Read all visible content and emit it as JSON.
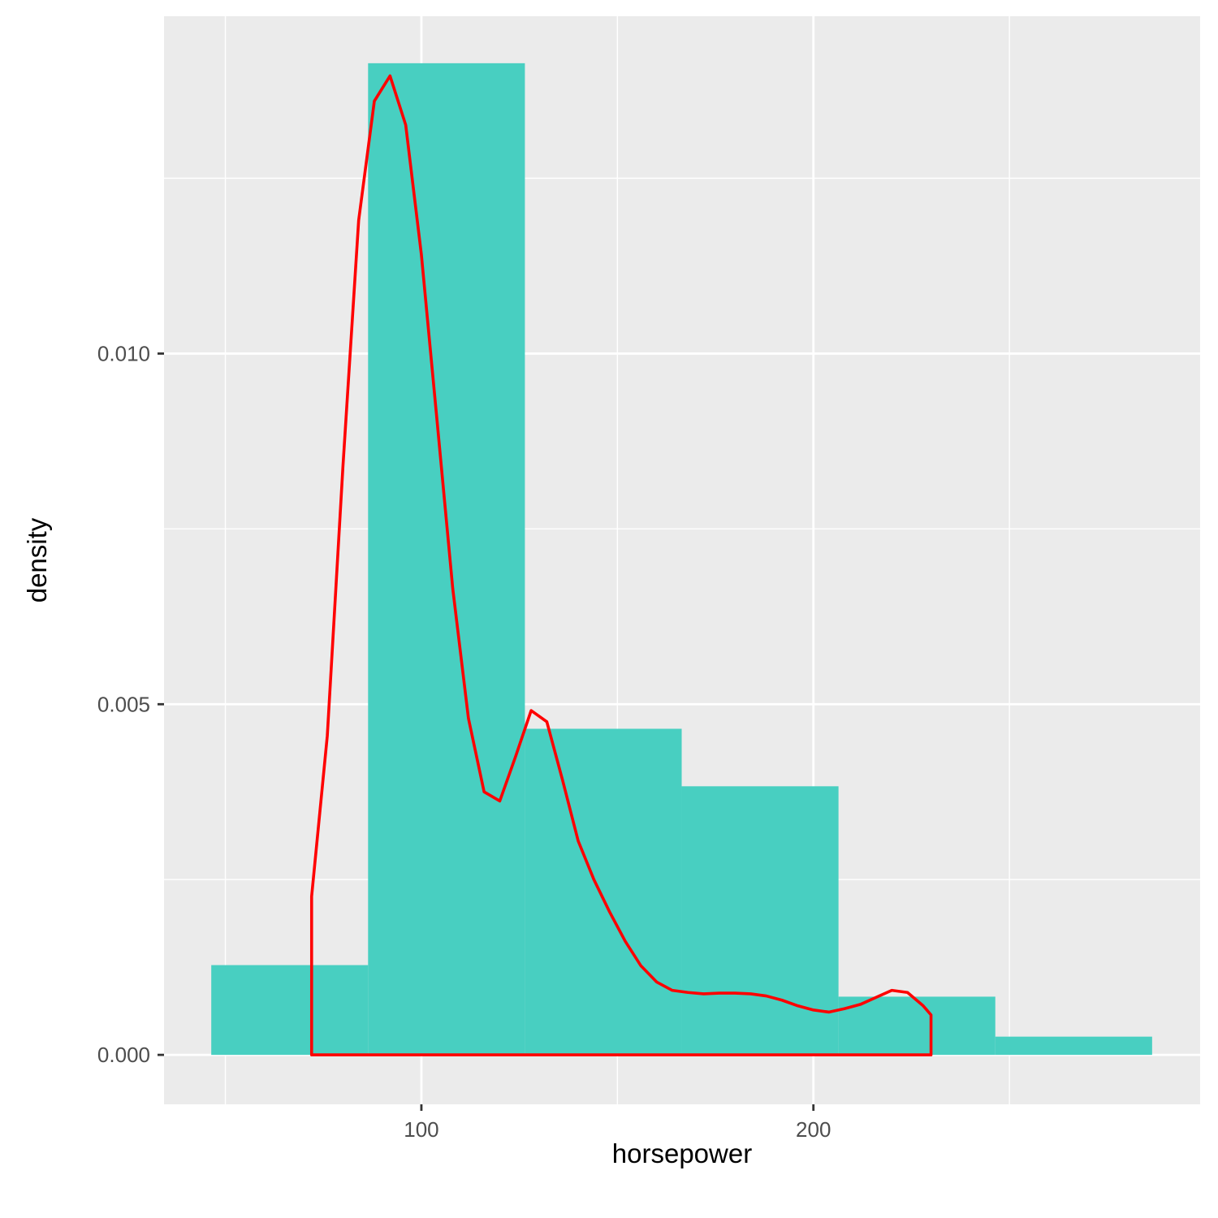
{
  "chart_data": {
    "type": "bar",
    "xlabel": "horsepower",
    "ylabel": "density",
    "xlim": [
      34.35,
      298.65
    ],
    "ylim": [
      -0.000705,
      0.01481
    ],
    "grid": true,
    "x_ticks": [
      {
        "value": 100,
        "label": "100"
      },
      {
        "value": 200,
        "label": "200"
      }
    ],
    "x_minor_ticks": [
      50,
      150,
      250
    ],
    "y_ticks": [
      {
        "value": 0.0,
        "label": "0.000"
      },
      {
        "value": 0.005,
        "label": "0.005"
      },
      {
        "value": 0.01,
        "label": "0.010"
      }
    ],
    "y_minor_ticks": [
      0.0025,
      0.0075,
      0.0125
    ],
    "histogram": {
      "fill_color": "#48cfc1",
      "bins": [
        {
          "x0": 46.4,
          "x1": 86.4,
          "density": 0.00128
        },
        {
          "x0": 86.4,
          "x1": 126.4,
          "density": 0.01414
        },
        {
          "x0": 126.4,
          "x1": 166.4,
          "density": 0.00465
        },
        {
          "x0": 166.4,
          "x1": 206.4,
          "density": 0.00383
        },
        {
          "x0": 206.4,
          "x1": 246.4,
          "density": 0.00083
        },
        {
          "x0": 246.4,
          "x1": 286.4,
          "density": 0.00026
        }
      ]
    },
    "density_curve": {
      "color": "#ff0000",
      "x": [
        72,
        76,
        80,
        84,
        88,
        92,
        96,
        100,
        104,
        108,
        112,
        116,
        120,
        124,
        128,
        132,
        136,
        140,
        144,
        148,
        152,
        156,
        160,
        164,
        168,
        172,
        176,
        180,
        184,
        188,
        192,
        196,
        200,
        204,
        208,
        212,
        216,
        220,
        224,
        228,
        230
      ],
      "y": [
        0.00226,
        0.00455,
        0.0084,
        0.0119,
        0.0136,
        0.01396,
        0.01326,
        0.01141,
        0.00904,
        0.00665,
        0.0048,
        0.00375,
        0.00362,
        0.00425,
        0.00491,
        0.00475,
        0.00392,
        0.00305,
        0.0025,
        0.00204,
        0.00162,
        0.00127,
        0.00104,
        0.00092,
        0.00089,
        0.00087,
        0.00088,
        0.00088,
        0.00087,
        0.00084,
        0.00078,
        0.0007,
        0.00064,
        0.00061,
        0.00066,
        0.00072,
        0.00082,
        0.00092,
        0.00089,
        0.0007,
        0.00057
      ],
      "baseline_start": 72,
      "baseline_end": 230
    }
  }
}
